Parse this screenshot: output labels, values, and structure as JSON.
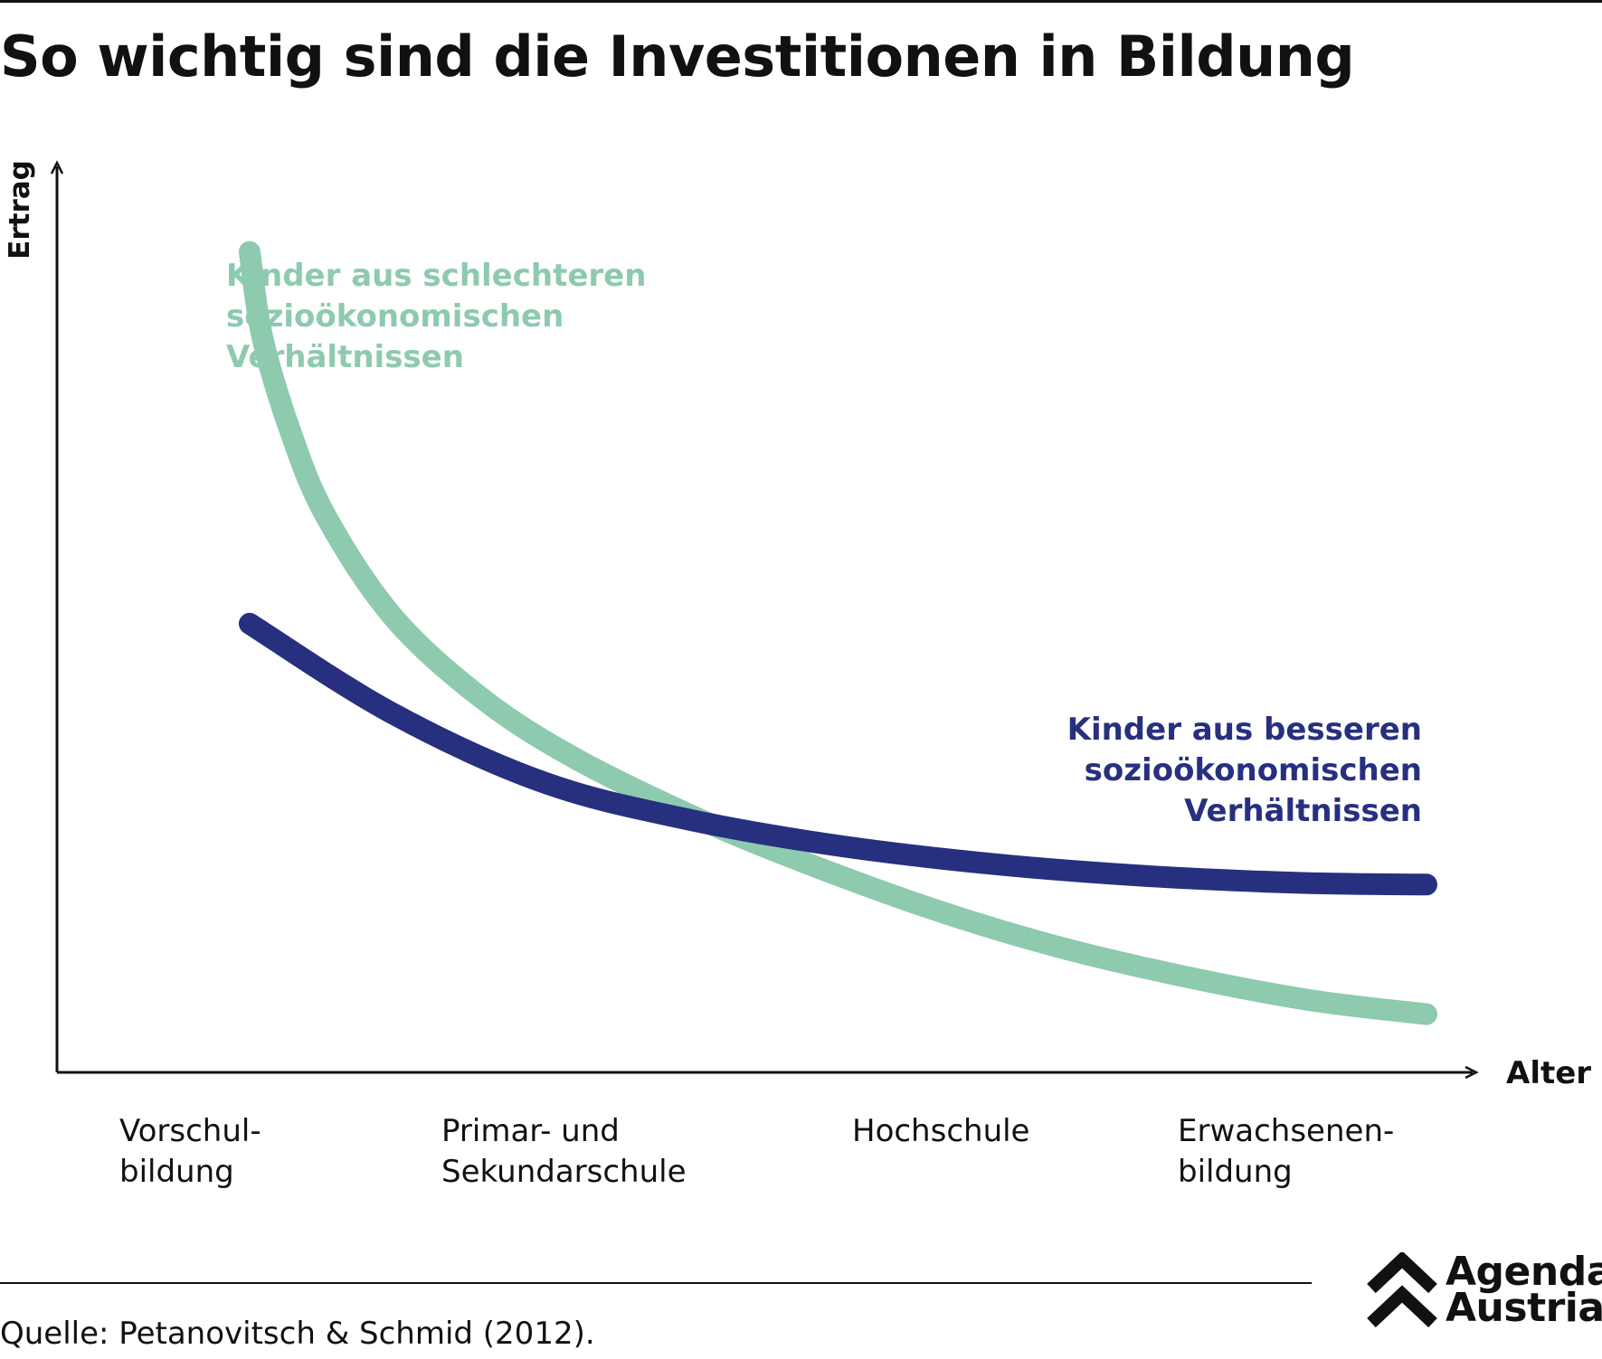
{
  "title": "So wichtig sind die Investitionen in Bildung",
  "source": "Quelle: Petanovitsch & Schmid (2012).",
  "logo": {
    "line1": "Agenda",
    "line2": "Austria"
  },
  "colors": {
    "green": "#8DCAAE",
    "navy": "#27307F",
    "axis": "#111111"
  },
  "chart_data": {
    "type": "line",
    "xlabel": "Alter",
    "ylabel": "Ertrag",
    "categories": [
      [
        "Vorschul-",
        "bildung"
      ],
      [
        "Primar- und",
        "Sekundarschule"
      ],
      [
        "Hochschule"
      ],
      [
        "Erwachsenen-",
        "bildung"
      ]
    ],
    "xlim": [
      0,
      100
    ],
    "ylim": [
      0,
      100
    ],
    "grid": false,
    "legend": "inline labels",
    "series": [
      {
        "name": [
          "Kinder aus schlechteren",
          "sozioökonomischen",
          "Verhältnissen"
        ],
        "color": "#8DCAAE",
        "x": [
          7.4,
          8.4,
          10.6,
          13.4,
          18.8,
          25.8,
          33,
          42,
          50,
          61,
          71,
          81,
          91,
          100
        ],
        "y": [
          94,
          84,
          73,
          63,
          51,
          41.5,
          34.6,
          28,
          23,
          17,
          12.5,
          9,
          6.2,
          4.6
        ]
      },
      {
        "name": [
          "Kinder aus besseren",
          "sozioökonomischen",
          "Verhältnissen"
        ],
        "color": "#27307F",
        "x": [
          7.4,
          18.6,
          30.5,
          42,
          54,
          66,
          78,
          90,
          100
        ],
        "y": [
          50.4,
          39.9,
          31.8,
          27.4,
          24.3,
          22.2,
          20.8,
          20,
          19.8
        ]
      }
    ]
  }
}
